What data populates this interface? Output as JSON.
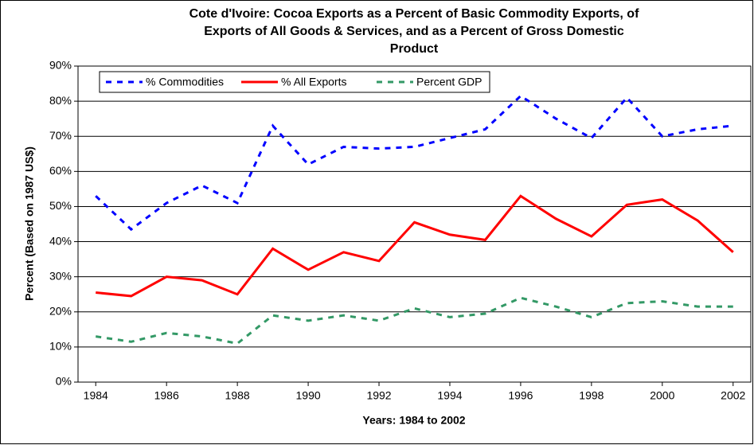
{
  "chart_data": {
    "type": "line",
    "title": [
      "Cote d'Ivoire: Cocoa Exports as a Percent of Basic Commodity Exports, of",
      "Exports of All Goods & Services, and as a Percent of Gross Domestic",
      "Product"
    ],
    "x_label": "Years: 1984 to 2002",
    "y_label": "Percent (Based on 1987 US$)",
    "x": [
      1984,
      1985,
      1986,
      1987,
      1988,
      1989,
      1990,
      1991,
      1992,
      1993,
      1994,
      1995,
      1996,
      1997,
      1998,
      1999,
      2000,
      2001,
      2002
    ],
    "xlim": [
      1983.5,
      2002.5
    ],
    "xticks": [
      1984,
      1986,
      1988,
      1990,
      1992,
      1994,
      1996,
      1998,
      2000,
      2002
    ],
    "ylim": [
      0,
      90
    ],
    "yticks": [
      {
        "value": 0,
        "label": "0%"
      },
      {
        "value": 10,
        "label": "10%"
      },
      {
        "value": 20,
        "label": "20%"
      },
      {
        "value": 30,
        "label": "30%"
      },
      {
        "value": 40,
        "label": "40%"
      },
      {
        "value": 50,
        "label": "50%"
      },
      {
        "value": 60,
        "label": "60%"
      },
      {
        "value": 70,
        "label": "70%"
      },
      {
        "value": 80,
        "label": "80%"
      },
      {
        "value": 90,
        "label": "90%"
      }
    ],
    "grid": true,
    "legend": "top-left",
    "series": [
      {
        "name": "% Commodities",
        "color": "#0000ff",
        "style": "dashed",
        "values": [
          53,
          43.5,
          51,
          56,
          51,
          73,
          62,
          67,
          66.5,
          67,
          69.5,
          72,
          81.5,
          75,
          69.5,
          81,
          70,
          72,
          73
        ]
      },
      {
        "name": "% All Exports",
        "color": "#ff0000",
        "style": "solid",
        "values": [
          25.5,
          24.5,
          30,
          29,
          25,
          38,
          32,
          37,
          34.5,
          45.5,
          42,
          40.5,
          53,
          46.5,
          41.5,
          50.5,
          52,
          46,
          37
        ]
      },
      {
        "name": "Percent GDP",
        "color": "#339966",
        "style": "dashed",
        "values": [
          13,
          11.5,
          14,
          13,
          11,
          19,
          17.5,
          19,
          17.5,
          21,
          18.5,
          19.5,
          24,
          21.5,
          18.5,
          22.5,
          23,
          21.5,
          21.5
        ]
      }
    ]
  }
}
